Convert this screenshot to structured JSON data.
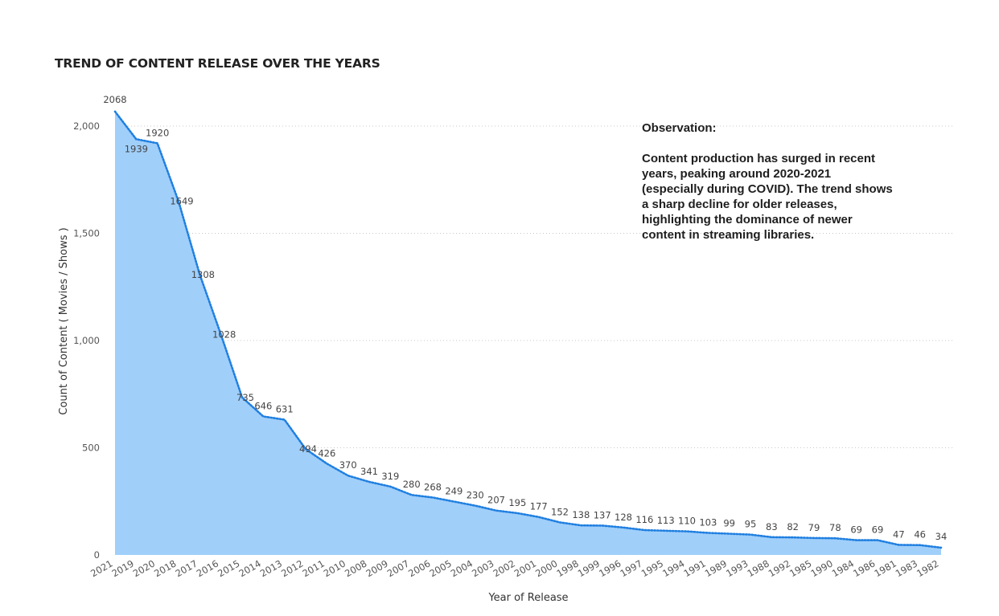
{
  "chart_data": {
    "type": "area",
    "title": "TREND OF CONTENT RELEASE OVER THE YEARS",
    "xlabel": "Year of Release",
    "ylabel": "Count of Content ( Movies / Shows )",
    "ylim": [
      0,
      2000
    ],
    "yticks": [
      0,
      500,
      1000,
      1500,
      2000
    ],
    "ytick_labels": [
      "0",
      "500",
      "1,000",
      "1,500",
      "2,000"
    ],
    "grid": true,
    "categories": [
      "2021",
      "2019",
      "2020",
      "2018",
      "2017",
      "2016",
      "2015",
      "2014",
      "2013",
      "2012",
      "2011",
      "2010",
      "2008",
      "2009",
      "2007",
      "2006",
      "2005",
      "2004",
      "2003",
      "2002",
      "2001",
      "2000",
      "1998",
      "1999",
      "1996",
      "1997",
      "1995",
      "1994",
      "1991",
      "1989",
      "1993",
      "1988",
      "1992",
      "1985",
      "1990",
      "1984",
      "1986",
      "1981",
      "1983",
      "1982"
    ],
    "series": [
      {
        "values": [
          2068,
          1939,
          1920,
          1649,
          1308,
          1028,
          735,
          646,
          631,
          494,
          426,
          370,
          341,
          319,
          280,
          268,
          249,
          230,
          207,
          195,
          177,
          152,
          138,
          137,
          128,
          116,
          113,
          110,
          103,
          99,
          95,
          83,
          82,
          79,
          78,
          69,
          69,
          47,
          46,
          34
        ],
        "color": "#a0cffa",
        "line_color": "#1f7fe0"
      }
    ]
  },
  "observation": {
    "heading": "Observation:",
    "text": "Content production has surged in recent years, peaking around 2020-2021 (especially during COVID). The trend shows a sharp decline for older releases, highlighting the dominance of newer content in streaming libraries."
  }
}
